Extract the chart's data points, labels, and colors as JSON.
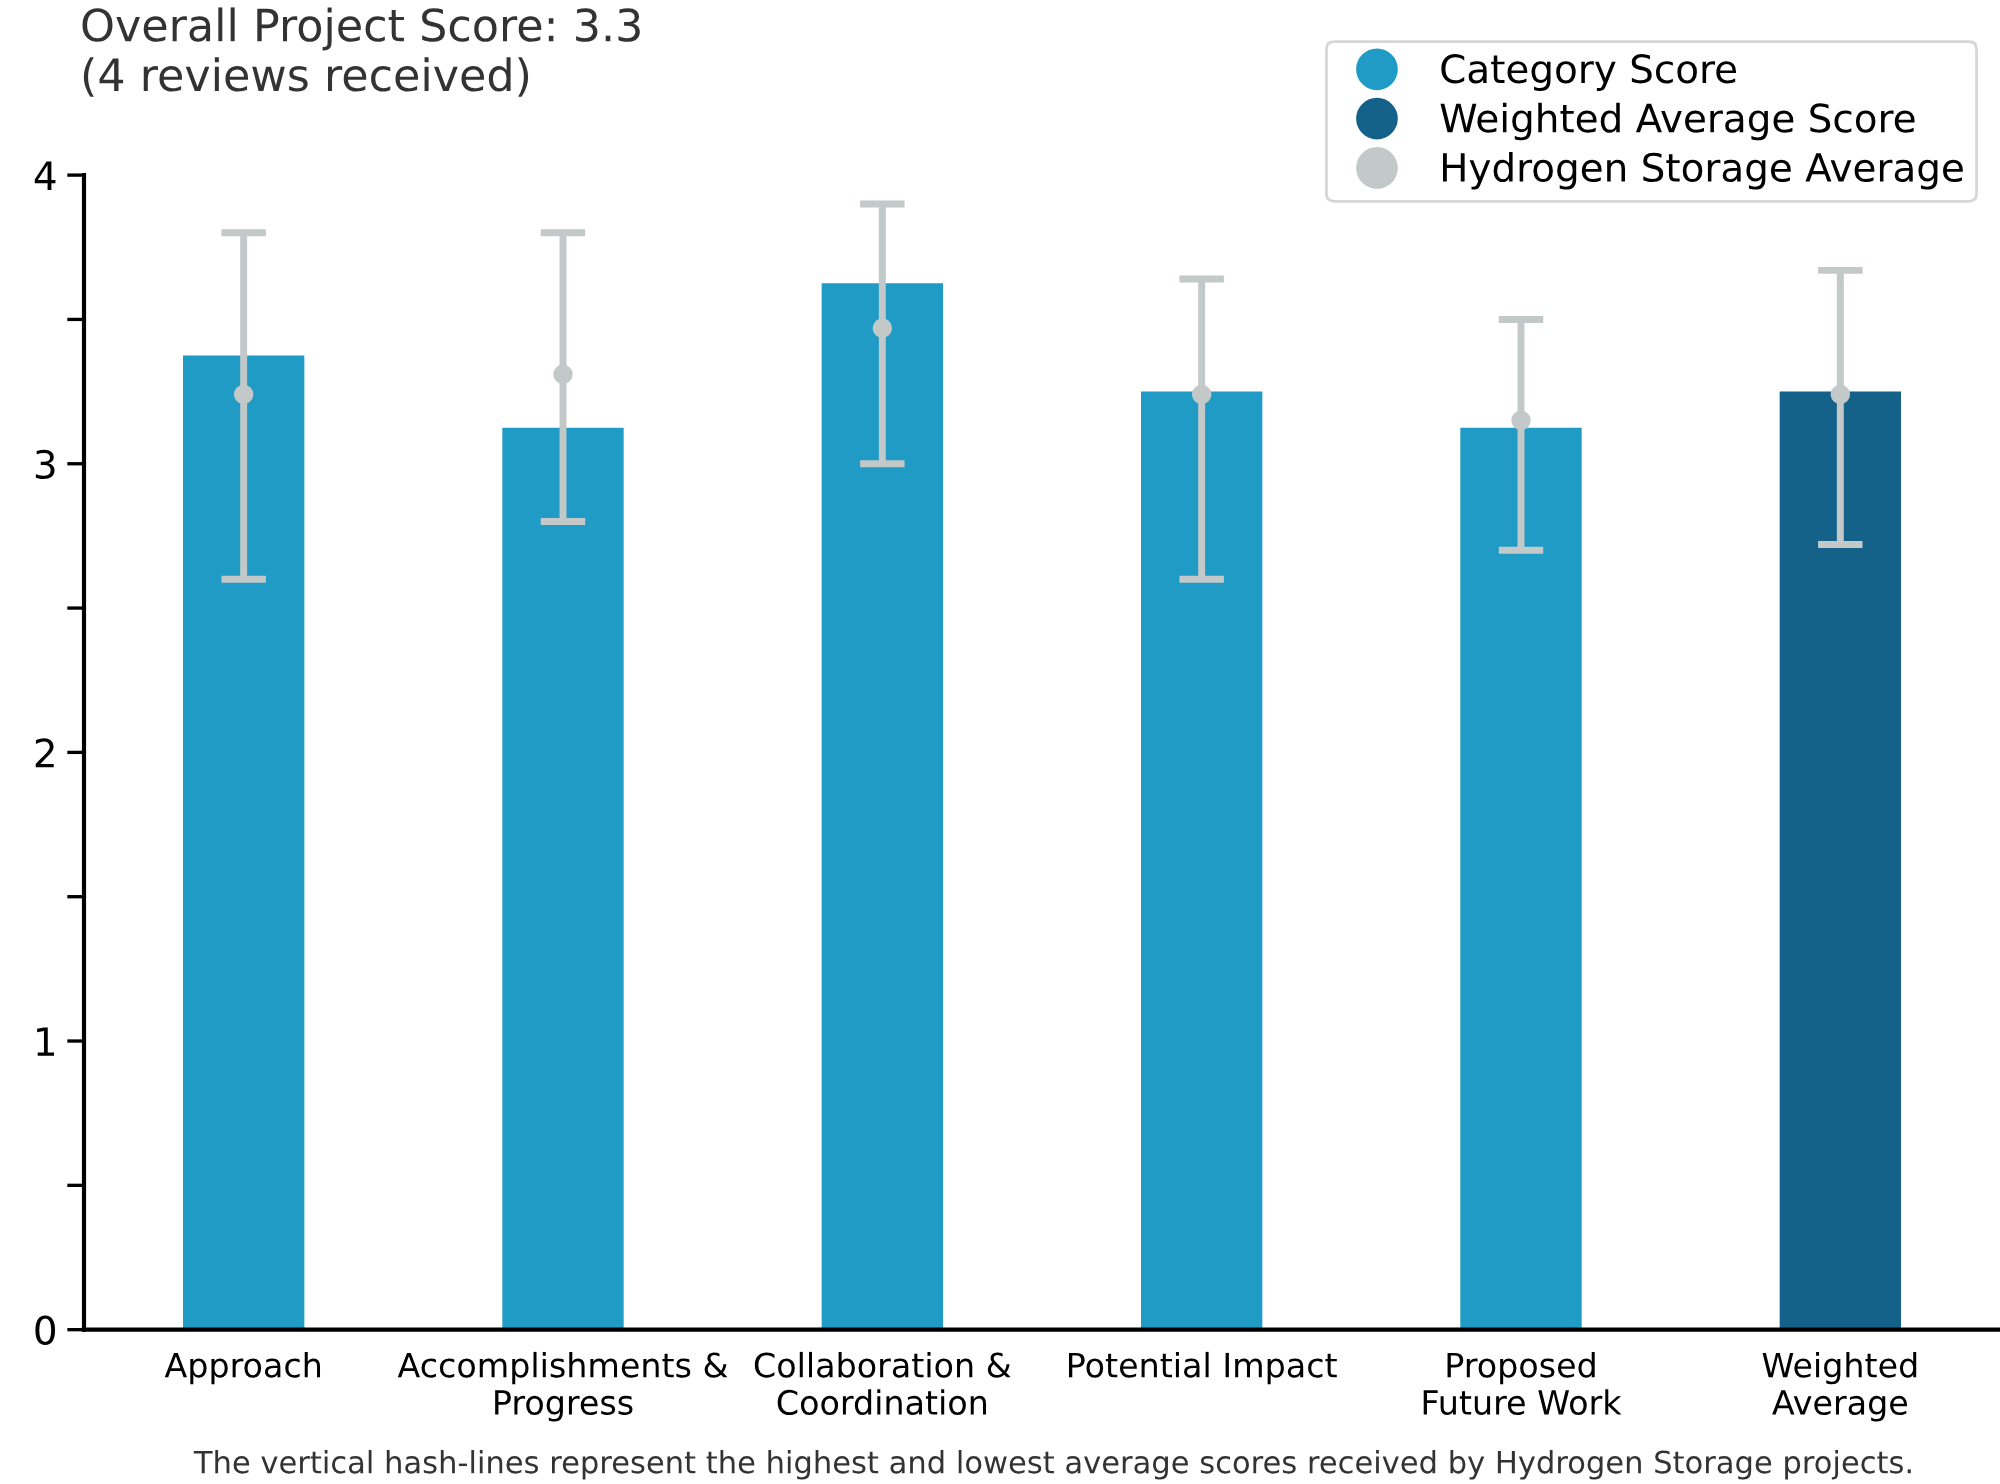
{
  "chart_data": {
    "type": "bar",
    "title": "Overall Project Score: 3.3\n(4 reviews received)",
    "categories": [
      "Approach",
      "Accomplishments &\nProgress",
      "Collaboration &\nCoordination",
      "Potential Impact",
      "Proposed\nFuture Work",
      "Weighted\nAverage"
    ],
    "series": [
      {
        "name": "Category Score",
        "color": "#1f9bc6",
        "values": [
          3.375,
          3.125,
          3.625,
          3.25,
          3.125,
          null
        ]
      },
      {
        "name": "Weighted Average Score",
        "color": "#14618a",
        "values": [
          null,
          null,
          null,
          null,
          null,
          3.25
        ]
      },
      {
        "name": "Hydrogen Storage Average",
        "type": "scatter",
        "color": "#c3c8c8",
        "x": [
          "Approach",
          "Accomplishments &\nProgress",
          "Collaboration &\nCoordination",
          "Potential Impact",
          "Proposed\nFuture Work",
          "Weighted\nAverage"
        ],
        "values": [
          3.24,
          3.31,
          3.47,
          3.24,
          3.15,
          3.24
        ],
        "errors": [
          [
            2.6,
            3.8
          ],
          [
            2.8,
            3.8
          ],
          [
            3.0,
            3.9
          ],
          [
            2.6,
            3.64
          ],
          [
            2.7,
            3.5
          ],
          [
            2.72,
            3.67
          ]
        ]
      }
    ],
    "ylim": [
      0,
      4
    ],
    "yticks": [
      0,
      {
        "value": 0.5,
        "label": null
      },
      1,
      {
        "value": 1.5,
        "label": null
      },
      2,
      {
        "value": 2.5,
        "label": null
      },
      3,
      {
        "value": 3.5,
        "label": null
      },
      4
    ],
    "marker": "circle",
    "legend": "top right",
    "grid": false,
    "annotations": [
      "The vertical hash-lines represent the highest and lowest average scores received by Hydrogen Storage projects."
    ]
  }
}
